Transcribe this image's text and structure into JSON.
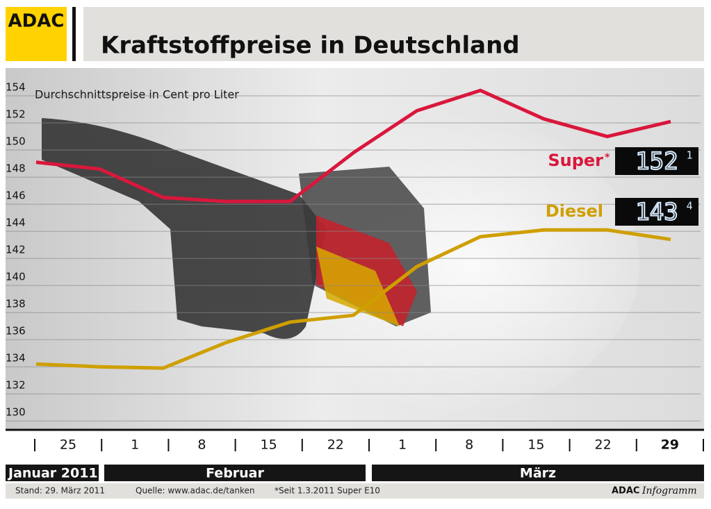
{
  "header": {
    "logo": "ADAC",
    "title": "Kraftstoffpreise in Deutschland"
  },
  "chart_data": {
    "type": "line",
    "subtitle": "Durchschnittspreise in Cent pro Liter",
    "categories": [
      null,
      "25",
      "1",
      "8",
      "15",
      "22",
      "1",
      "8",
      "15",
      "22",
      "29"
    ],
    "months": [
      "Januar 2011",
      "Februar",
      "März"
    ],
    "series": [
      {
        "name": "Super",
        "name_suffix": "*",
        "color": "#d9173c",
        "display": [
          "152",
          "1"
        ],
        "values": [
          149.1,
          148.6,
          146.5,
          146.2,
          146.2,
          149.8,
          152.9,
          154.4,
          152.3,
          151.0,
          152.1
        ]
      },
      {
        "name": "Diesel",
        "color": "#cf9f00",
        "display": [
          "143",
          "4"
        ],
        "values": [
          134.2,
          134.0,
          133.9,
          135.8,
          137.3,
          137.8,
          141.4,
          143.6,
          144.1,
          144.1,
          143.4
        ]
      }
    ],
    "ylim": [
      129.5,
      155
    ],
    "yticks": [
      130,
      132,
      134,
      136,
      138,
      140,
      142,
      144,
      146,
      148,
      150,
      152,
      154
    ],
    "grid": true
  },
  "footer": {
    "stand": "Stand:  29. März 2011",
    "source": "Quelle: www.adac.de/tanken",
    "note": "*Seit 1.3.2011 Super E10",
    "brand": "ADAC",
    "brand_suffix": "Infogramm"
  }
}
